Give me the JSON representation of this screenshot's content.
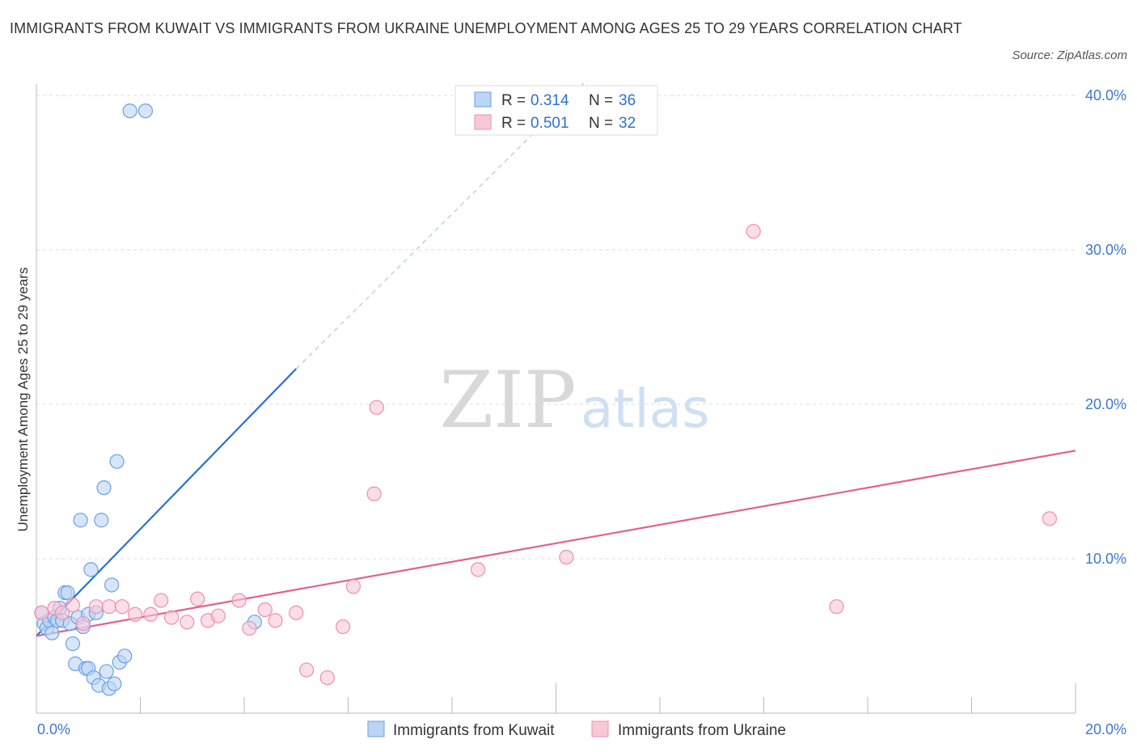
{
  "chart_data": {
    "type": "scatter",
    "title": "IMMIGRANTS FROM KUWAIT VS IMMIGRANTS FROM UKRAINE UNEMPLOYMENT AMONG AGES 25 TO 29 YEARS CORRELATION CHART",
    "source": "Source: ZipAtlas.com",
    "xlabel": "",
    "ylabel": "Unemployment Among Ages 25 to 29 years",
    "xlim": [
      0,
      20
    ],
    "ylim": [
      0,
      40
    ],
    "x_tick_labels": [
      "0.0%",
      "20.0%"
    ],
    "y_ticks": [
      10,
      20,
      30,
      40
    ],
    "y_tick_labels": [
      "10.0%",
      "20.0%",
      "30.0%",
      "40.0%"
    ],
    "grid": true,
    "watermark": "ZIPatlas",
    "legend": {
      "position": "top-center",
      "entries": [
        {
          "r_label": "R = ",
          "r_value": "0.314",
          "n_label": "N = ",
          "n_value": "36"
        },
        {
          "r_label": "R = ",
          "r_value": "0.501",
          "n_label": "N = ",
          "n_value": "32"
        }
      ]
    },
    "bottom_legend": [
      "Immigrants from Kuwait",
      "Immigrants from Ukraine"
    ],
    "series": [
      {
        "name": "Immigrants from Kuwait",
        "color": "#6aa1e4",
        "fill": "#bcd4f5",
        "line_color": "#2b72d0",
        "trend": {
          "x0": 0.0,
          "y0": 5.0,
          "x1": 5.0,
          "y1": 22.3,
          "dash_to_x": 10.6,
          "dash_to_y": 41.0
        },
        "points": [
          [
            0.1,
            6.5
          ],
          [
            0.15,
            5.8
          ],
          [
            0.2,
            5.5
          ],
          [
            0.25,
            6.0
          ],
          [
            0.3,
            5.2
          ],
          [
            0.35,
            6.2
          ],
          [
            0.4,
            6.0
          ],
          [
            0.45,
            6.8
          ],
          [
            0.5,
            6.0
          ],
          [
            0.55,
            7.8
          ],
          [
            0.6,
            7.8
          ],
          [
            0.65,
            5.8
          ],
          [
            0.7,
            4.5
          ],
          [
            0.75,
            3.2
          ],
          [
            0.8,
            6.2
          ],
          [
            0.85,
            12.5
          ],
          [
            0.9,
            5.6
          ],
          [
            0.95,
            2.9
          ],
          [
            1.0,
            2.9
          ],
          [
            1.0,
            6.4
          ],
          [
            1.05,
            9.3
          ],
          [
            1.1,
            2.3
          ],
          [
            1.15,
            6.5
          ],
          [
            1.2,
            1.8
          ],
          [
            1.25,
            12.5
          ],
          [
            1.3,
            14.6
          ],
          [
            1.35,
            2.7
          ],
          [
            1.4,
            1.6
          ],
          [
            1.45,
            8.3
          ],
          [
            1.5,
            1.9
          ],
          [
            1.55,
            16.3
          ],
          [
            1.6,
            3.3
          ],
          [
            1.7,
            3.7
          ],
          [
            1.8,
            39.0
          ],
          [
            2.1,
            39.0
          ],
          [
            4.2,
            5.9
          ]
        ]
      },
      {
        "name": "Immigrants from Ukraine",
        "color": "#ec8fae",
        "fill": "#f8c8d7",
        "line_color": "#e2608e",
        "trend": {
          "x0": 0.0,
          "y0": 5.0,
          "x1": 20.0,
          "y1": 17.0
        },
        "points": [
          [
            0.1,
            6.5
          ],
          [
            0.35,
            6.8
          ],
          [
            0.5,
            6.5
          ],
          [
            0.7,
            7.0
          ],
          [
            0.9,
            5.8
          ],
          [
            1.15,
            6.9
          ],
          [
            1.4,
            6.9
          ],
          [
            1.65,
            6.9
          ],
          [
            1.9,
            6.4
          ],
          [
            2.2,
            6.4
          ],
          [
            2.4,
            7.3
          ],
          [
            2.6,
            6.2
          ],
          [
            2.9,
            5.9
          ],
          [
            3.1,
            7.4
          ],
          [
            3.3,
            6.0
          ],
          [
            3.5,
            6.3
          ],
          [
            3.9,
            7.3
          ],
          [
            4.1,
            5.5
          ],
          [
            4.4,
            6.7
          ],
          [
            4.6,
            6.0
          ],
          [
            5.0,
            6.5
          ],
          [
            5.2,
            2.8
          ],
          [
            5.6,
            2.3
          ],
          [
            5.9,
            5.6
          ],
          [
            6.1,
            8.2
          ],
          [
            6.5,
            14.2
          ],
          [
            6.55,
            19.8
          ],
          [
            8.5,
            9.3
          ],
          [
            10.2,
            10.1
          ],
          [
            13.8,
            31.2
          ],
          [
            15.4,
            6.9
          ],
          [
            19.5,
            12.6
          ]
        ]
      }
    ]
  }
}
